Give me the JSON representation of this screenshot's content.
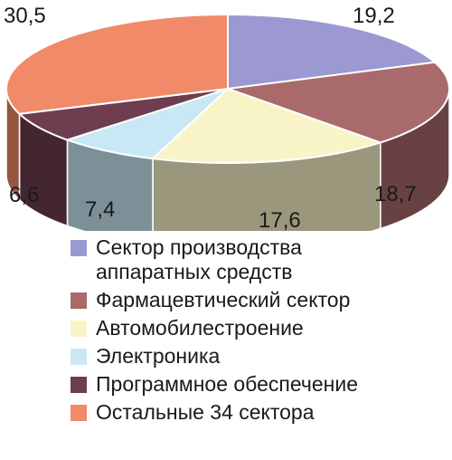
{
  "chart_data": {
    "type": "pie",
    "title": "",
    "categories": [
      "Сектор производства\nаппаратных средств",
      "Фармацевтический сектор",
      "Автомобилестроение",
      "Электроника",
      "Программное обеспечение",
      "Остальные 34 сектора"
    ],
    "values": [
      19.2,
      18.7,
      17.6,
      7.4,
      6.6,
      30.5
    ],
    "value_labels": [
      "19,2",
      "18,7",
      "17,6",
      "7,4",
      "6,6",
      "30,5"
    ],
    "colors": [
      "#9c98d2",
      "#a86a6a",
      "#f8f4c8",
      "#c9e8f5",
      "#6e3d50",
      "#f08a68"
    ],
    "style": "3d-tilted",
    "legend_position": "bottom"
  }
}
